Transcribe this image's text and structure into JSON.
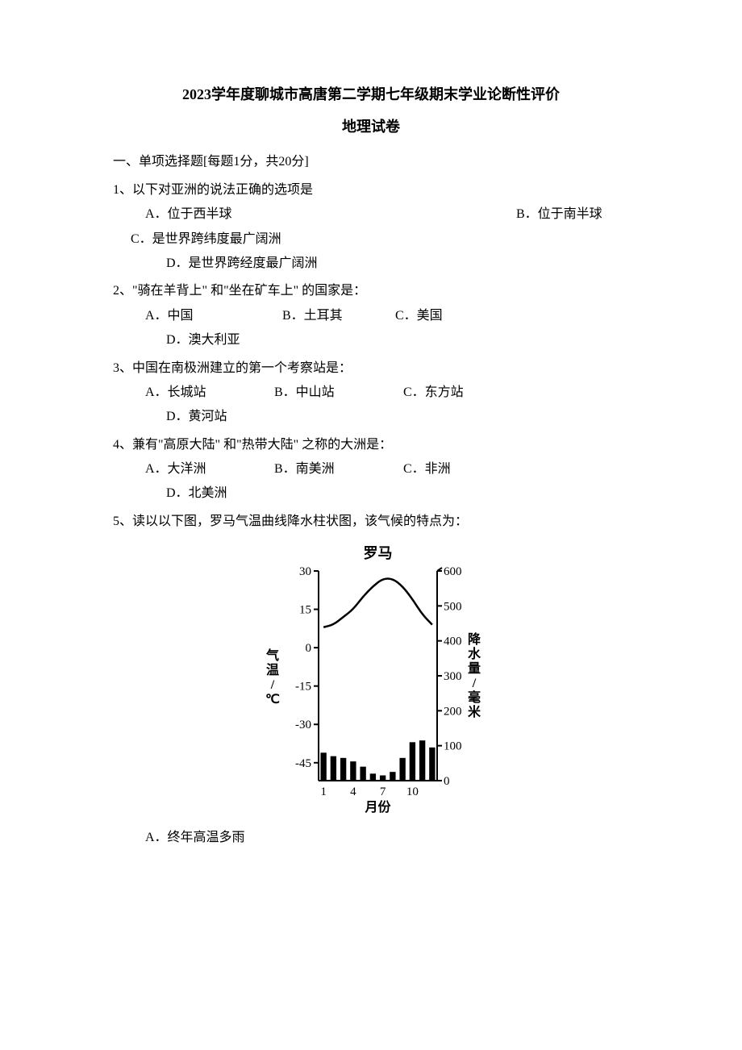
{
  "title": "2023学年度聊城市高唐第二学期七年级期末学业论断性评价",
  "subtitle": "地理试卷",
  "section": "一、单项选择题[每题1分，共20分]",
  "q1": {
    "stem": "1、以下对亚洲的说法正确的选项是",
    "A": "A．位于西半球",
    "B": "B．位于南半球",
    "C": "C．是世界跨纬度最广阔洲",
    "D": "D．是世界跨经度最广阔洲"
  },
  "q2": {
    "stem": "2、\"骑在羊背上\" 和\"坐在矿车上\" 的国家是：",
    "A": "A．中国",
    "B": "B．土耳其",
    "C": "C．美国",
    "D": "D．澳大利亚"
  },
  "q3": {
    "stem": "3、中国在南极洲建立的第一个考察站是：",
    "A": "A．长城站",
    "B": "B．中山站",
    "C": "C．东方站",
    "D": "D．黄河站"
  },
  "q4": {
    "stem": "4、兼有\"高原大陆\" 和\"热带大陆\" 之称的大洲是：",
    "A": "A．大洋洲",
    "B": "B．南美洲",
    "C": "C．非洲",
    "D": "D．北美洲"
  },
  "q5": {
    "stem": "5、读以以下图，罗马气温曲线降水柱状图，该气候的特点为：",
    "A": "A．终年高温多雨"
  },
  "chart": {
    "type": "combo-line-bar",
    "title": "罗马",
    "title_fontsize": 18,
    "title_fontweight": "bold",
    "y_left_label": "气温/℃",
    "y_right_label": "降水量/毫米",
    "x_label": "月份",
    "label_fontsize": 16,
    "tick_fontsize": 15,
    "x_ticks": [
      1,
      4,
      7,
      10
    ],
    "y_left_ticks": [
      30,
      15,
      0,
      -15,
      -30,
      -45
    ],
    "y_right_ticks": [
      600,
      500,
      400,
      300,
      200,
      100,
      0
    ],
    "y_left_range": [
      -52,
      30
    ],
    "y_right_range": [
      0,
      600
    ],
    "temperature_line": {
      "color": "#000000",
      "stroke_width": 2.5,
      "points_temp_C": [
        8,
        9,
        12,
        15,
        20,
        24,
        27,
        27,
        24,
        19,
        13,
        9
      ]
    },
    "precipitation_bars": {
      "color": "#000000",
      "bar_width_rel": 0.6,
      "values_mm": [
        80,
        70,
        65,
        55,
        40,
        20,
        15,
        25,
        65,
        110,
        115,
        95
      ]
    },
    "axis_color": "#000000",
    "axis_stroke_width": 2,
    "background_color": "#ffffff"
  }
}
